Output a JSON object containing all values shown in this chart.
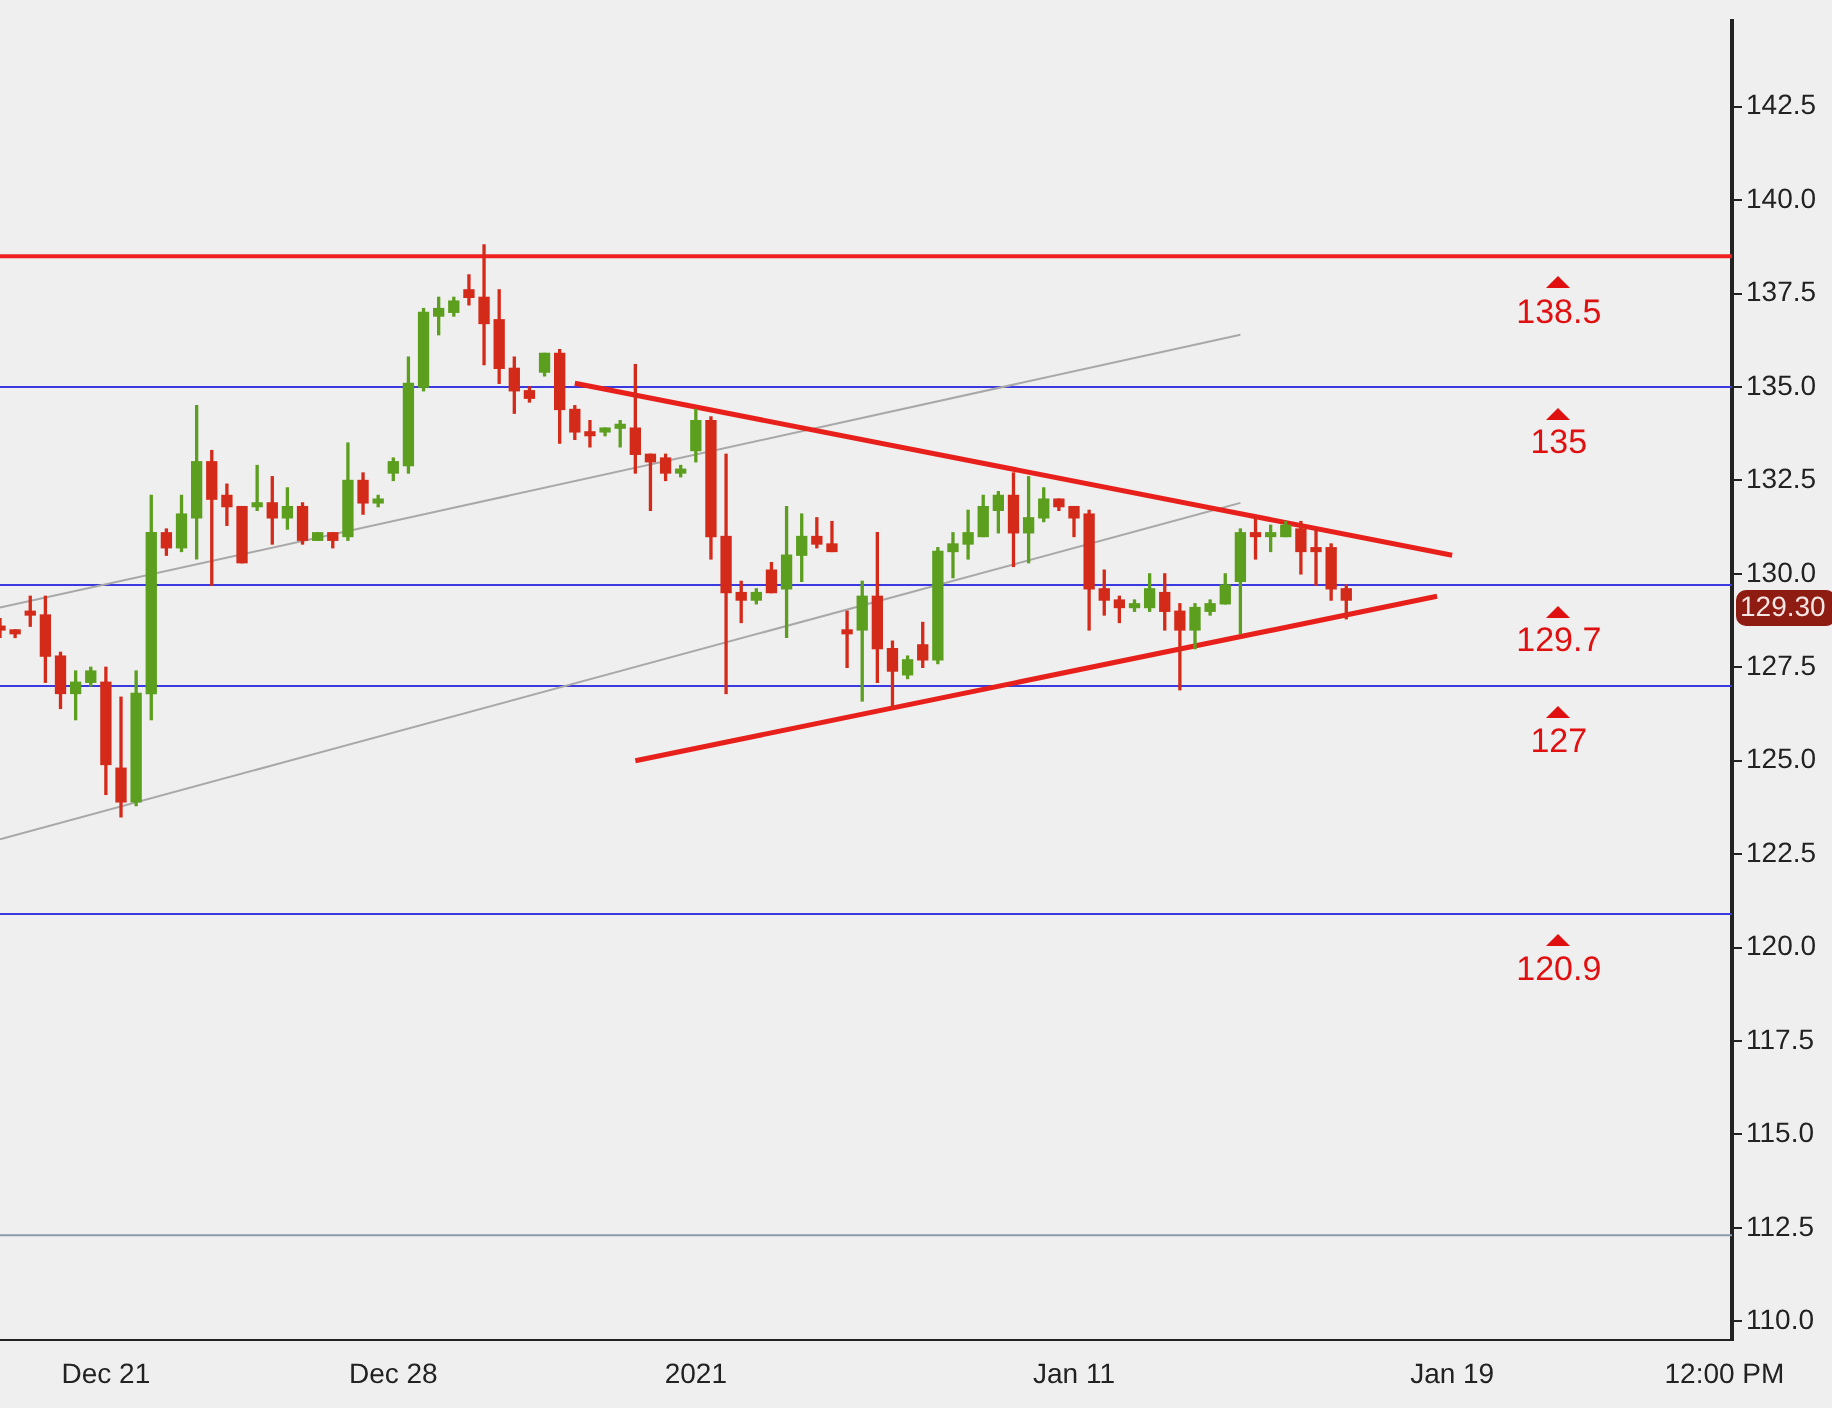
{
  "chart_data": {
    "type": "candlestick",
    "categories": [
      null,
      null,
      null,
      null,
      null,
      null,
      null,
      "Dec 21",
      null,
      null,
      null,
      null,
      null,
      null,
      null,
      null,
      null,
      null,
      null,
      null,
      null,
      null,
      null,
      null,
      null,
      null,
      "Dec 28",
      null,
      null,
      null,
      null,
      null,
      null,
      null,
      null,
      null,
      null,
      null,
      null,
      null,
      null,
      null,
      null,
      null,
      null,
      null,
      "2021",
      null,
      null,
      null,
      null,
      null,
      null,
      null,
      null,
      null,
      null,
      null,
      null,
      null,
      null,
      null,
      null,
      null,
      null,
      null,
      null,
      null,
      null,
      null,
      null,
      "Jan 11",
      null,
      null,
      null,
      null,
      null,
      null,
      null,
      null,
      null,
      null,
      null,
      null,
      null,
      null,
      null,
      null,
      null,
      null,
      null,
      null,
      null,
      null,
      null,
      null,
      "Jan 19",
      null,
      null,
      null,
      null,
      null,
      null,
      null,
      null,
      null,
      null,
      null,
      null,
      null,
      null,
      null,
      null,
      null,
      "12:00 PM"
    ],
    "ohlc": [
      [
        128.6,
        128.8,
        128.3,
        128.5
      ],
      [
        128.5,
        128.5,
        128.3,
        128.4
      ],
      [
        129.0,
        129.4,
        128.6,
        128.9
      ],
      [
        128.9,
        129.4,
        127.1,
        127.8
      ],
      [
        127.8,
        127.9,
        126.4,
        126.8
      ],
      [
        126.8,
        127.4,
        126.1,
        127.1
      ],
      [
        127.1,
        127.5,
        127.0,
        127.4
      ],
      [
        127.1,
        127.5,
        124.1,
        124.9
      ],
      [
        124.8,
        126.7,
        123.5,
        123.9
      ],
      [
        123.9,
        127.4,
        123.8,
        126.8
      ],
      [
        126.8,
        132.1,
        126.1,
        131.1
      ],
      [
        131.1,
        131.2,
        130.5,
        130.7
      ],
      [
        130.7,
        132.1,
        130.6,
        131.6
      ],
      [
        131.5,
        134.5,
        130.4,
        133.0
      ],
      [
        133.0,
        133.3,
        129.7,
        132.0
      ],
      [
        132.1,
        132.4,
        131.3,
        131.8
      ],
      [
        131.8,
        131.8,
        130.3,
        130.3
      ],
      [
        131.8,
        132.9,
        131.7,
        131.9
      ],
      [
        131.9,
        132.6,
        130.8,
        131.5
      ],
      [
        131.5,
        132.3,
        131.2,
        131.8
      ],
      [
        131.8,
        131.9,
        130.8,
        130.9
      ],
      [
        130.9,
        131.1,
        130.9,
        131.1
      ],
      [
        131.1,
        131.1,
        130.7,
        130.9
      ],
      [
        131.0,
        133.5,
        130.9,
        132.5
      ],
      [
        132.5,
        132.7,
        131.6,
        131.9
      ],
      [
        131.9,
        132.1,
        131.8,
        132.0
      ],
      [
        132.7,
        133.1,
        132.5,
        133.0
      ],
      [
        132.9,
        135.8,
        132.7,
        135.1
      ],
      [
        135.0,
        137.1,
        134.9,
        137.0
      ],
      [
        136.9,
        137.4,
        136.4,
        137.1
      ],
      [
        137.0,
        137.4,
        136.9,
        137.3
      ],
      [
        137.6,
        138.0,
        137.2,
        137.4
      ],
      [
        137.4,
        138.8,
        135.6,
        136.7
      ],
      [
        136.8,
        137.6,
        135.1,
        135.5
      ],
      [
        135.5,
        135.8,
        134.3,
        134.9
      ],
      [
        134.9,
        135.0,
        134.6,
        134.7
      ],
      [
        135.4,
        135.9,
        135.3,
        135.9
      ],
      [
        135.9,
        136.0,
        133.5,
        134.4
      ],
      [
        134.4,
        134.5,
        133.6,
        133.8
      ],
      [
        133.8,
        134.1,
        133.4,
        133.7
      ],
      [
        133.8,
        133.9,
        133.7,
        133.9
      ],
      [
        133.9,
        134.1,
        133.4,
        134.0
      ],
      [
        133.9,
        135.6,
        132.7,
        133.2
      ],
      [
        133.2,
        133.2,
        131.7,
        133.0
      ],
      [
        133.1,
        133.2,
        132.5,
        132.7
      ],
      [
        132.7,
        132.9,
        132.6,
        132.8
      ],
      [
        133.3,
        134.4,
        133.0,
        134.1
      ],
      [
        134.1,
        134.2,
        130.4,
        131.0
      ],
      [
        131.0,
        133.2,
        126.8,
        129.5
      ],
      [
        129.5,
        129.8,
        128.7,
        129.3
      ],
      [
        129.3,
        129.6,
        129.2,
        129.5
      ],
      [
        130.1,
        130.3,
        129.5,
        129.5
      ],
      [
        129.6,
        131.8,
        128.3,
        130.5
      ],
      [
        130.5,
        131.6,
        129.8,
        131.0
      ],
      [
        131.0,
        131.5,
        130.7,
        130.8
      ],
      [
        130.8,
        131.4,
        130.6,
        130.6
      ],
      [
        128.5,
        129.0,
        127.5,
        128.4
      ],
      [
        128.5,
        129.8,
        126.6,
        129.4
      ],
      [
        129.4,
        131.1,
        127.1,
        128.0
      ],
      [
        128.0,
        128.2,
        126.4,
        127.4
      ],
      [
        127.3,
        127.8,
        127.2,
        127.7
      ],
      [
        128.1,
        128.7,
        127.5,
        127.7
      ],
      [
        127.7,
        130.7,
        127.6,
        130.6
      ],
      [
        130.6,
        131.1,
        129.9,
        130.8
      ],
      [
        130.8,
        131.7,
        130.4,
        131.1
      ],
      [
        131.0,
        132.1,
        131.0,
        131.8
      ],
      [
        131.7,
        132.2,
        131.1,
        132.1
      ],
      [
        132.1,
        132.7,
        130.2,
        131.1
      ],
      [
        131.1,
        132.6,
        130.3,
        131.5
      ],
      [
        131.5,
        132.3,
        131.4,
        132.0
      ],
      [
        132.0,
        132.0,
        131.7,
        131.8
      ],
      [
        131.8,
        131.8,
        131.0,
        131.5
      ],
      [
        131.6,
        131.7,
        128.5,
        129.6
      ],
      [
        129.6,
        130.1,
        128.9,
        129.3
      ],
      [
        129.3,
        129.4,
        128.7,
        129.1
      ],
      [
        129.1,
        129.3,
        129.0,
        129.2
      ],
      [
        129.1,
        130.0,
        129.0,
        129.6
      ],
      [
        129.5,
        130.0,
        128.5,
        129.0
      ],
      [
        129.0,
        129.2,
        126.9,
        128.5
      ],
      [
        128.5,
        129.2,
        128.0,
        129.1
      ],
      [
        129.0,
        129.3,
        128.9,
        129.2
      ],
      [
        129.2,
        130.0,
        129.2,
        129.7
      ],
      [
        129.8,
        131.2,
        128.4,
        131.1
      ],
      [
        131.1,
        131.5,
        130.4,
        131.0
      ],
      [
        131.0,
        131.3,
        130.6,
        131.1
      ],
      [
        131.0,
        131.4,
        131.0,
        131.3
      ],
      [
        131.2,
        131.4,
        130.0,
        130.6
      ],
      [
        130.7,
        131.2,
        129.7,
        130.6
      ],
      [
        130.7,
        130.8,
        129.3,
        129.6
      ],
      [
        129.6,
        129.7,
        128.8,
        129.3
      ],
      null,
      null,
      null,
      null,
      null,
      null,
      null,
      null,
      null,
      null,
      null,
      null,
      null,
      null,
      null,
      null,
      null,
      null,
      null,
      null,
      null,
      null,
      null,
      null,
      null
    ],
    "colors": [
      "#d42a1a",
      "#d42a1a",
      "#d42a1a",
      "#d42a1a",
      "#d42a1a",
      "#5c9e1e",
      "#5c9e1e",
      "#d42a1a",
      "#d42a1a",
      "#5c9e1e",
      "#5c9e1e",
      "#d42a1a",
      "#5c9e1e",
      "#5c9e1e",
      "#d42a1a",
      "#d42a1a",
      "#d42a1a",
      "#5c9e1e",
      "#d42a1a",
      "#5c9e1e",
      "#d42a1a",
      "#5c9e1e",
      "#d42a1a",
      "#5c9e1e",
      "#d42a1a",
      "#5c9e1e",
      "#5c9e1e",
      "#5c9e1e",
      "#5c9e1e",
      "#5c9e1e",
      "#5c9e1e",
      "#d42a1a",
      "#d42a1a",
      "#d42a1a",
      "#d42a1a",
      "#d42a1a",
      "#5c9e1e",
      "#d42a1a",
      "#d42a1a",
      "#d42a1a",
      "#5c9e1e",
      "#5c9e1e",
      "#d42a1a",
      "#d42a1a",
      "#d42a1a",
      "#5c9e1e",
      "#5c9e1e",
      "#d42a1a",
      "#d42a1a",
      "#d42a1a",
      "#5c9e1e",
      "#d42a1a",
      "#5c9e1e",
      "#5c9e1e",
      "#d42a1a",
      "#d42a1a",
      "#d42a1a",
      "#5c9e1e",
      "#d42a1a",
      "#d42a1a",
      "#5c9e1e",
      "#d42a1a",
      "#5c9e1e",
      "#5c9e1e",
      "#5c9e1e",
      "#5c9e1e",
      "#5c9e1e",
      "#d42a1a",
      "#5c9e1e",
      "#5c9e1e",
      "#d42a1a",
      "#d42a1a",
      "#d42a1a",
      "#d42a1a",
      "#d42a1a",
      "#5c9e1e",
      "#5c9e1e",
      "#d42a1a",
      "#d42a1a",
      "#5c9e1e",
      "#5c9e1e",
      "#5c9e1e",
      "#5c9e1e",
      "#d42a1a",
      "#5c9e1e",
      "#5c9e1e",
      "#d42a1a",
      "#d42a1a",
      "#d42a1a",
      "#d42a1a",
      null,
      null,
      null,
      null,
      null,
      null,
      null,
      null,
      null,
      null,
      null,
      null,
      null,
      null,
      null,
      null,
      null,
      null,
      null,
      null,
      null,
      null,
      null,
      null,
      null
    ],
    "series": [
      {
        "type": "line",
        "color": "#e8201c",
        "values": [
          null,
          null,
          null,
          null,
          null,
          null,
          null,
          null,
          null,
          null,
          null,
          null,
          null,
          null,
          null,
          null,
          null,
          null,
          null,
          null,
          null,
          null,
          null,
          null,
          null,
          null,
          null,
          null,
          null,
          null,
          null,
          null,
          null,
          null,
          null,
          null,
          null,
          null,
          135.1,
          null,
          null,
          null,
          null,
          null,
          null,
          null,
          null,
          null,
          null,
          null,
          null,
          null,
          null,
          null,
          null,
          null,
          null,
          null,
          null,
          null,
          null,
          null,
          null,
          null,
          null,
          null,
          null,
          null,
          null,
          null,
          null,
          null,
          null,
          null,
          null,
          null,
          null,
          null,
          null,
          null,
          null,
          null,
          null,
          null,
          null,
          null,
          null,
          null,
          null,
          null,
          null,
          null,
          null,
          null,
          null,
          null,
          130.5,
          null,
          null,
          null,
          null,
          null,
          null,
          null,
          null,
          null,
          null,
          null,
          null,
          null,
          null,
          null,
          null,
          null,
          null
        ]
      },
      {
        "type": "line",
        "color": "#e8201c",
        "values": [
          null,
          null,
          null,
          null,
          null,
          null,
          null,
          null,
          null,
          null,
          null,
          null,
          null,
          null,
          null,
          null,
          null,
          null,
          null,
          null,
          null,
          null,
          null,
          null,
          null,
          null,
          null,
          null,
          null,
          null,
          null,
          null,
          null,
          null,
          null,
          null,
          null,
          null,
          null,
          null,
          null,
          null,
          125.0,
          null,
          null,
          null,
          null,
          null,
          null,
          null,
          null,
          null,
          null,
          null,
          null,
          null,
          null,
          null,
          null,
          null,
          null,
          null,
          null,
          null,
          null,
          null,
          null,
          null,
          null,
          null,
          null,
          null,
          null,
          null,
          null,
          null,
          null,
          null,
          null,
          null,
          null,
          null,
          null,
          null,
          null,
          null,
          null,
          null,
          null,
          null,
          null,
          null,
          null,
          null,
          null,
          129.4,
          null,
          null,
          null,
          null,
          null,
          null,
          null,
          null,
          null,
          null,
          null,
          null,
          null,
          null,
          null,
          null,
          null,
          null,
          null
        ]
      },
      {
        "type": "line",
        "color": "#a8a8a8",
        "values": [
          129.1,
          null,
          null,
          null,
          null,
          null,
          null,
          null,
          null,
          null,
          null,
          null,
          null,
          null,
          null,
          null,
          null,
          null,
          null,
          null,
          null,
          null,
          null,
          null,
          null,
          null,
          null,
          null,
          null,
          null,
          null,
          null,
          null,
          null,
          null,
          null,
          null,
          null,
          null,
          null,
          null,
          null,
          null,
          null,
          null,
          null,
          null,
          null,
          null,
          null,
          null,
          null,
          null,
          null,
          null,
          null,
          null,
          null,
          null,
          null,
          null,
          null,
          null,
          null,
          null,
          null,
          null,
          null,
          null,
          null,
          null,
          null,
          null,
          null,
          null,
          null,
          null,
          null,
          null,
          null,
          null,
          null,
          136.4,
          null,
          null,
          null,
          null,
          null,
          null,
          null,
          null,
          null,
          null,
          null,
          null,
          null,
          null,
          null,
          null,
          null,
          null,
          null,
          null,
          null,
          null,
          null,
          null,
          null,
          null,
          null,
          null,
          null,
          null,
          null,
          null
        ]
      },
      {
        "type": "line",
        "color": "#a8a8a8",
        "values": [
          122.9,
          null,
          null,
          null,
          null,
          null,
          null,
          null,
          null,
          null,
          null,
          null,
          null,
          null,
          null,
          null,
          null,
          null,
          null,
          null,
          null,
          null,
          null,
          null,
          null,
          null,
          null,
          null,
          null,
          null,
          null,
          null,
          null,
          null,
          null,
          null,
          null,
          null,
          null,
          null,
          null,
          null,
          null,
          null,
          null,
          null,
          null,
          null,
          null,
          null,
          null,
          null,
          null,
          null,
          null,
          null,
          null,
          null,
          null,
          null,
          null,
          null,
          null,
          null,
          null,
          null,
          null,
          null,
          null,
          null,
          null,
          null,
          null,
          null,
          null,
          null,
          null,
          null,
          null,
          null,
          null,
          null,
          131.9,
          null,
          null,
          null,
          null,
          null,
          null,
          null,
          null,
          null,
          null,
          null,
          null,
          null,
          null,
          null,
          null,
          null,
          null,
          null,
          null,
          null,
          null,
          null,
          null,
          null,
          null,
          null,
          null,
          null,
          null,
          null,
          null
        ]
      }
    ],
    "marker": "none",
    "line_style": "solid",
    "ref_lines": [
      {
        "axis": "y",
        "value": 138.5,
        "color": "#f02020"
      },
      {
        "axis": "y",
        "value": 135,
        "color": "#3a3ae0"
      },
      {
        "axis": "y",
        "value": 129.7,
        "color": "#3a3ae0"
      },
      {
        "axis": "y",
        "value": 127,
        "color": "#3a3ae0"
      },
      {
        "axis": "y",
        "value": 120.9,
        "color": "#3a3ae0"
      },
      {
        "axis": "y",
        "value": 112.3,
        "color": "#8a9aaa"
      }
    ],
    "annotations": [
      "129.30",
      {
        "text": "138.5",
        "y": 138.5
      },
      {
        "text": "135",
        "y": 135
      },
      {
        "text": "129.7",
        "y": 129.7
      },
      {
        "text": "127",
        "y": 127
      },
      {
        "text": "120.9",
        "y": 120.9
      }
    ],
    "ylim": [
      109.5,
      144.8
    ],
    "yticks": [
      {
        "value": 110,
        "label": "110.0"
      },
      {
        "value": 112.5,
        "label": "112.5"
      },
      {
        "value": 115,
        "label": "115.0"
      },
      {
        "value": 117.5,
        "label": "117.5"
      },
      {
        "value": 120,
        "label": "120.0"
      },
      {
        "value": 122.5,
        "label": "122.5"
      },
      {
        "value": 125,
        "label": "125.0"
      },
      {
        "value": 127.5,
        "label": "127.5"
      },
      {
        "value": 130,
        "label": "130.0"
      },
      {
        "value": 132.5,
        "label": "132.5"
      },
      {
        "value": 135,
        "label": "135.0"
      },
      {
        "value": 137.5,
        "label": "137.5"
      },
      {
        "value": 140,
        "label": "140.0"
      },
      {
        "value": 142.5,
        "label": "142.5"
      }
    ],
    "grid": false,
    "legend": false
  }
}
